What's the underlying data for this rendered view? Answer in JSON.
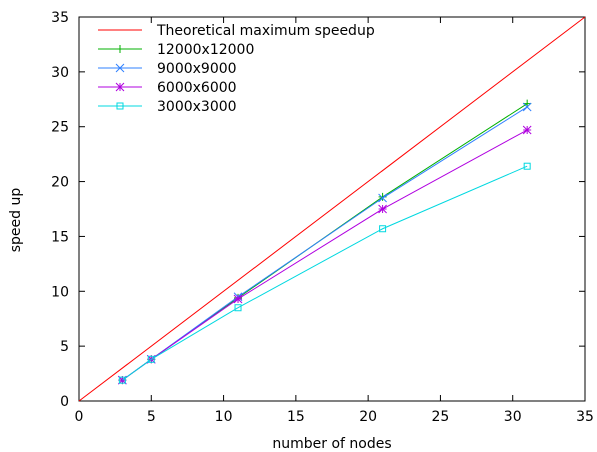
{
  "chart_data": {
    "type": "line",
    "title": "",
    "xlabel": "number of nodes",
    "ylabel": "speed up",
    "xlim": [
      0,
      35
    ],
    "ylim": [
      0,
      35
    ],
    "xticks": [
      0,
      5,
      10,
      15,
      20,
      25,
      30,
      35
    ],
    "yticks": [
      0,
      5,
      10,
      15,
      20,
      25,
      30,
      35
    ],
    "grid": false,
    "legend_position": "top-left",
    "series": [
      {
        "name": "Theoretical maximum speedup",
        "color": "#ff0000",
        "marker": "none",
        "x": [
          0,
          35
        ],
        "y": [
          0,
          35
        ]
      },
      {
        "name": "12000x12000",
        "color": "#00b000",
        "marker": "plus",
        "x": [
          3,
          5,
          11,
          21,
          31
        ],
        "y": [
          1.9,
          3.8,
          9.4,
          18.6,
          27.1
        ]
      },
      {
        "name": "9000x9000",
        "color": "#2f80ff",
        "marker": "cross",
        "x": [
          3,
          5,
          11,
          21,
          31
        ],
        "y": [
          1.9,
          3.8,
          9.5,
          18.5,
          26.8
        ]
      },
      {
        "name": "6000x6000",
        "color": "#b000e0",
        "marker": "star",
        "x": [
          3,
          5,
          11,
          21,
          31
        ],
        "y": [
          1.9,
          3.8,
          9.3,
          17.5,
          24.7
        ]
      },
      {
        "name": "3000x3000",
        "color": "#00d8e0",
        "marker": "square",
        "x": [
          3,
          5,
          11,
          21,
          31
        ],
        "y": [
          1.9,
          3.8,
          8.5,
          15.7,
          21.4
        ]
      }
    ]
  }
}
